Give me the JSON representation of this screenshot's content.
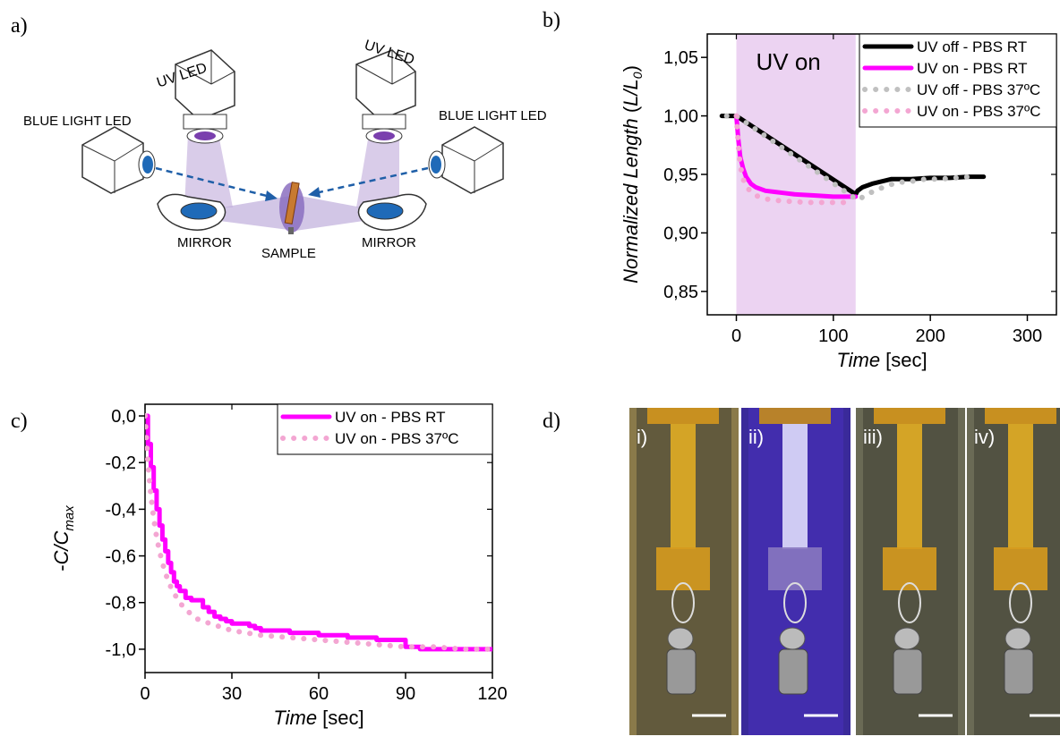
{
  "panels": {
    "a": "a)",
    "b": "b)",
    "c": "c)",
    "d": "d)"
  },
  "schematic": {
    "uv_led": "UV LED",
    "blue_led": "BLUE LIGHT LED",
    "mirror": "MIRROR",
    "sample": "SAMPLE"
  },
  "photos": {
    "labels": [
      "i)",
      "ii)",
      "iii)",
      "iv)"
    ],
    "tints": [
      "#8a7a4a",
      "#3a2a9a",
      "#6a6a55",
      "#6a6a55"
    ]
  },
  "colors": {
    "uv_off_rt": "#000000",
    "uv_on_rt": "#ff00ff",
    "uv_off_37": "#c0c0c0",
    "uv_on_37": "#f3a6d2",
    "uv_band": "#ecd3f2",
    "blue": "#1f5fa8"
  },
  "chart_data": [
    {
      "type": "line",
      "panel": "b",
      "title": "",
      "xlabel_italic": "Time",
      "xlabel_rest": " [sec]",
      "ylabel": "Normalized Length (L/L0)",
      "xlim": [
        -30,
        330
      ],
      "ylim": [
        0.83,
        1.07
      ],
      "xticks": [
        0,
        100,
        200,
        300
      ],
      "xtick_labels": [
        "0",
        "100",
        "200",
        "300"
      ],
      "yticks": [
        0.85,
        0.9,
        0.95,
        1.0,
        1.05
      ],
      "ytick_labels": [
        "0,85",
        "0,90",
        "0,95",
        "1,00",
        "1,05"
      ],
      "annotation": "UV on",
      "uv_band": [
        0,
        123
      ],
      "legend": "top-right",
      "series": [
        {
          "name": "UV off - PBS RT",
          "style": "solid-black",
          "x": [
            -15,
            -5,
            0,
            123,
            125,
            130,
            140,
            150,
            160,
            180,
            200,
            220,
            240,
            255
          ],
          "y": [
            1.0,
            1.0,
            1.0,
            0.933,
            0.936,
            0.939,
            0.942,
            0.944,
            0.946,
            0.946,
            0.947,
            0.947,
            0.948,
            0.948
          ]
        },
        {
          "name": "UV on - PBS RT",
          "style": "solid-magenta",
          "x": [
            0,
            2,
            4,
            7,
            10,
            15,
            20,
            30,
            40,
            50,
            60,
            80,
            100,
            123
          ],
          "y": [
            1.0,
            0.98,
            0.965,
            0.955,
            0.948,
            0.942,
            0.939,
            0.936,
            0.935,
            0.934,
            0.933,
            0.932,
            0.931,
            0.931
          ]
        },
        {
          "name": "UV off - PBS 37ºC",
          "style": "dotted-gray",
          "x": [
            -10,
            0,
            125,
            135,
            145,
            155,
            165,
            180,
            195,
            210,
            225,
            240
          ],
          "y": [
            1.0,
            1.0,
            0.928,
            0.933,
            0.937,
            0.94,
            0.943,
            0.944,
            0.946,
            0.946,
            0.947,
            0.948
          ]
        },
        {
          "name": "UV on - PBS 37ºC",
          "style": "dotted-pink",
          "x": [
            0,
            3,
            6,
            10,
            15,
            20,
            30,
            40,
            50,
            60,
            70,
            80,
            90,
            100,
            110,
            120
          ],
          "y": [
            1.0,
            0.965,
            0.948,
            0.94,
            0.935,
            0.932,
            0.929,
            0.928,
            0.927,
            0.927,
            0.926,
            0.926,
            0.926,
            0.926,
            0.926,
            0.927
          ]
        }
      ]
    },
    {
      "type": "line",
      "panel": "c",
      "title": "",
      "xlabel_italic": "Time",
      "xlabel_rest": " [sec]",
      "ylabel": "-C/Cmax",
      "xlim": [
        0,
        120
      ],
      "ylim": [
        -1.1,
        0.05
      ],
      "xticks": [
        0,
        30,
        60,
        90,
        120
      ],
      "xtick_labels": [
        "0",
        "30",
        "60",
        "90",
        "120"
      ],
      "yticks": [
        0.0,
        -0.2,
        -0.4,
        -0.6,
        -0.8,
        -1.0
      ],
      "ytick_labels": [
        "0,0",
        "-0,2",
        "-0,4",
        "-0,6",
        "-0,8",
        "-1,0"
      ],
      "legend": "top-right",
      "series": [
        {
          "name": "UV on - PBS RT",
          "style": "solid-magenta",
          "x": [
            0,
            1,
            2,
            3,
            4,
            5,
            6,
            7,
            8,
            9,
            10,
            11,
            12,
            14,
            16,
            18,
            20,
            22,
            24,
            26,
            28,
            30,
            32,
            34,
            36,
            38,
            40,
            45,
            50,
            55,
            60,
            65,
            70,
            75,
            80,
            85,
            90,
            95,
            100,
            105,
            110,
            115,
            120
          ],
          "y": [
            0,
            -0.12,
            -0.22,
            -0.32,
            -0.4,
            -0.47,
            -0.53,
            -0.58,
            -0.63,
            -0.67,
            -0.71,
            -0.73,
            -0.75,
            -0.78,
            -0.79,
            -0.79,
            -0.82,
            -0.84,
            -0.86,
            -0.87,
            -0.88,
            -0.89,
            -0.89,
            -0.89,
            -0.9,
            -0.91,
            -0.92,
            -0.92,
            -0.93,
            -0.93,
            -0.94,
            -0.94,
            -0.95,
            -0.95,
            -0.96,
            -0.96,
            -0.99,
            -1.0,
            -1.0,
            -1.0,
            -1.0,
            -1.0,
            -1.0
          ]
        },
        {
          "name": "UV on - PBS 37ºC",
          "style": "dotted-pink",
          "x": [
            0,
            1,
            2,
            3,
            4,
            5,
            6,
            7,
            8,
            10,
            12,
            14,
            16,
            18,
            20,
            25,
            30,
            35,
            40,
            50,
            60,
            70,
            80,
            90,
            100,
            110,
            120
          ],
          "y": [
            0,
            -0.2,
            -0.34,
            -0.44,
            -0.52,
            -0.58,
            -0.63,
            -0.67,
            -0.71,
            -0.76,
            -0.8,
            -0.83,
            -0.85,
            -0.87,
            -0.88,
            -0.9,
            -0.92,
            -0.93,
            -0.94,
            -0.95,
            -0.96,
            -0.97,
            -0.98,
            -0.99,
            -0.99,
            -1.0,
            -1.0
          ]
        }
      ]
    }
  ]
}
